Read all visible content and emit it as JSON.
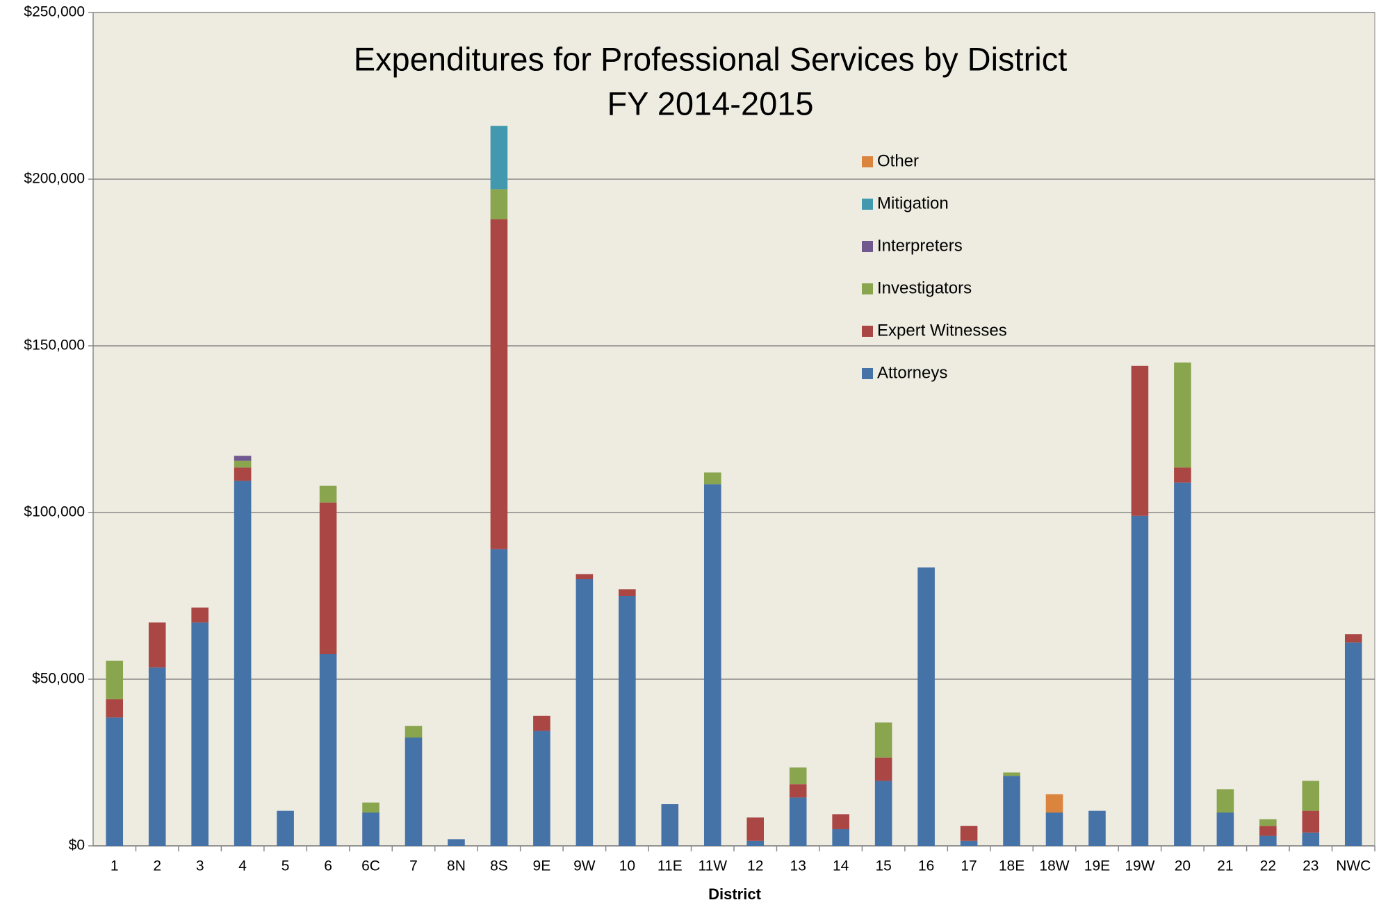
{
  "chart_data": {
    "type": "stacked_bar",
    "title": "Expenditures for Professional Services by District",
    "subtitle": "FY 2014-2015",
    "x_label": "District",
    "categories": [
      "1",
      "2",
      "3",
      "4",
      "5",
      "6",
      "6C",
      "7",
      "8N",
      "8S",
      "9E",
      "9W",
      "10",
      "11E",
      "11W",
      "12",
      "13",
      "14",
      "15",
      "16",
      "17",
      "18E",
      "18W",
      "19E",
      "19W",
      "20",
      "21",
      "22",
      "23",
      "NWC"
    ],
    "series": [
      {
        "name": "Attorneys",
        "color": "#4572a7",
        "values": [
          38500,
          53500,
          67000,
          109500,
          10500,
          57500,
          10000,
          32500,
          2000,
          89000,
          34500,
          80000,
          75000,
          12500,
          108500,
          1500,
          14500,
          5000,
          19500,
          83500,
          1500,
          21000,
          10000,
          10500,
          99000,
          109000,
          10000,
          3000,
          4000,
          61000
        ]
      },
      {
        "name": "Expert Witnesses",
        "color": "#aa4643",
        "values": [
          5500,
          13500,
          4500,
          4000,
          0,
          45500,
          0,
          0,
          0,
          99000,
          4500,
          1500,
          2000,
          0,
          0,
          7000,
          4000,
          4500,
          7000,
          0,
          4500,
          0,
          0,
          0,
          45000,
          4500,
          0,
          3000,
          6500,
          2500
        ]
      },
      {
        "name": "Investigators",
        "color": "#89a54e",
        "values": [
          11500,
          0,
          0,
          2000,
          0,
          5000,
          3000,
          3500,
          0,
          9000,
          0,
          0,
          0,
          0,
          3500,
          0,
          5000,
          0,
          10500,
          0,
          0,
          1000,
          0,
          0,
          0,
          31500,
          7000,
          2000,
          9000,
          0
        ]
      },
      {
        "name": "Interpreters",
        "color": "#71588f",
        "values": [
          0,
          0,
          0,
          1500,
          0,
          0,
          0,
          0,
          0,
          0,
          0,
          0,
          0,
          0,
          0,
          0,
          0,
          0,
          0,
          0,
          0,
          0,
          0,
          0,
          0,
          0,
          0,
          0,
          0,
          0
        ]
      },
      {
        "name": "Mitigation",
        "color": "#4198af",
        "values": [
          0,
          0,
          0,
          0,
          0,
          0,
          0,
          0,
          0,
          19000,
          0,
          0,
          0,
          0,
          0,
          0,
          0,
          0,
          0,
          0,
          0,
          0,
          0,
          0,
          0,
          0,
          0,
          0,
          0,
          0
        ]
      },
      {
        "name": "Other",
        "color": "#db843d",
        "values": [
          0,
          0,
          0,
          0,
          0,
          0,
          0,
          0,
          0,
          0,
          0,
          0,
          0,
          0,
          0,
          0,
          0,
          0,
          0,
          0,
          0,
          0,
          5500,
          0,
          0,
          0,
          0,
          0,
          0,
          0
        ]
      }
    ],
    "ylim": [
      0,
      250000
    ],
    "yticks": [
      {
        "value": 0,
        "label": "$0"
      },
      {
        "value": 50000,
        "label": "$50,000"
      },
      {
        "value": 100000,
        "label": "$100,000"
      },
      {
        "value": 150000,
        "label": "$150,000"
      },
      {
        "value": 200000,
        "label": "$200,000"
      },
      {
        "value": 250000,
        "label": "$250,000"
      }
    ],
    "grid": true,
    "plot_background": "#eeece1"
  }
}
